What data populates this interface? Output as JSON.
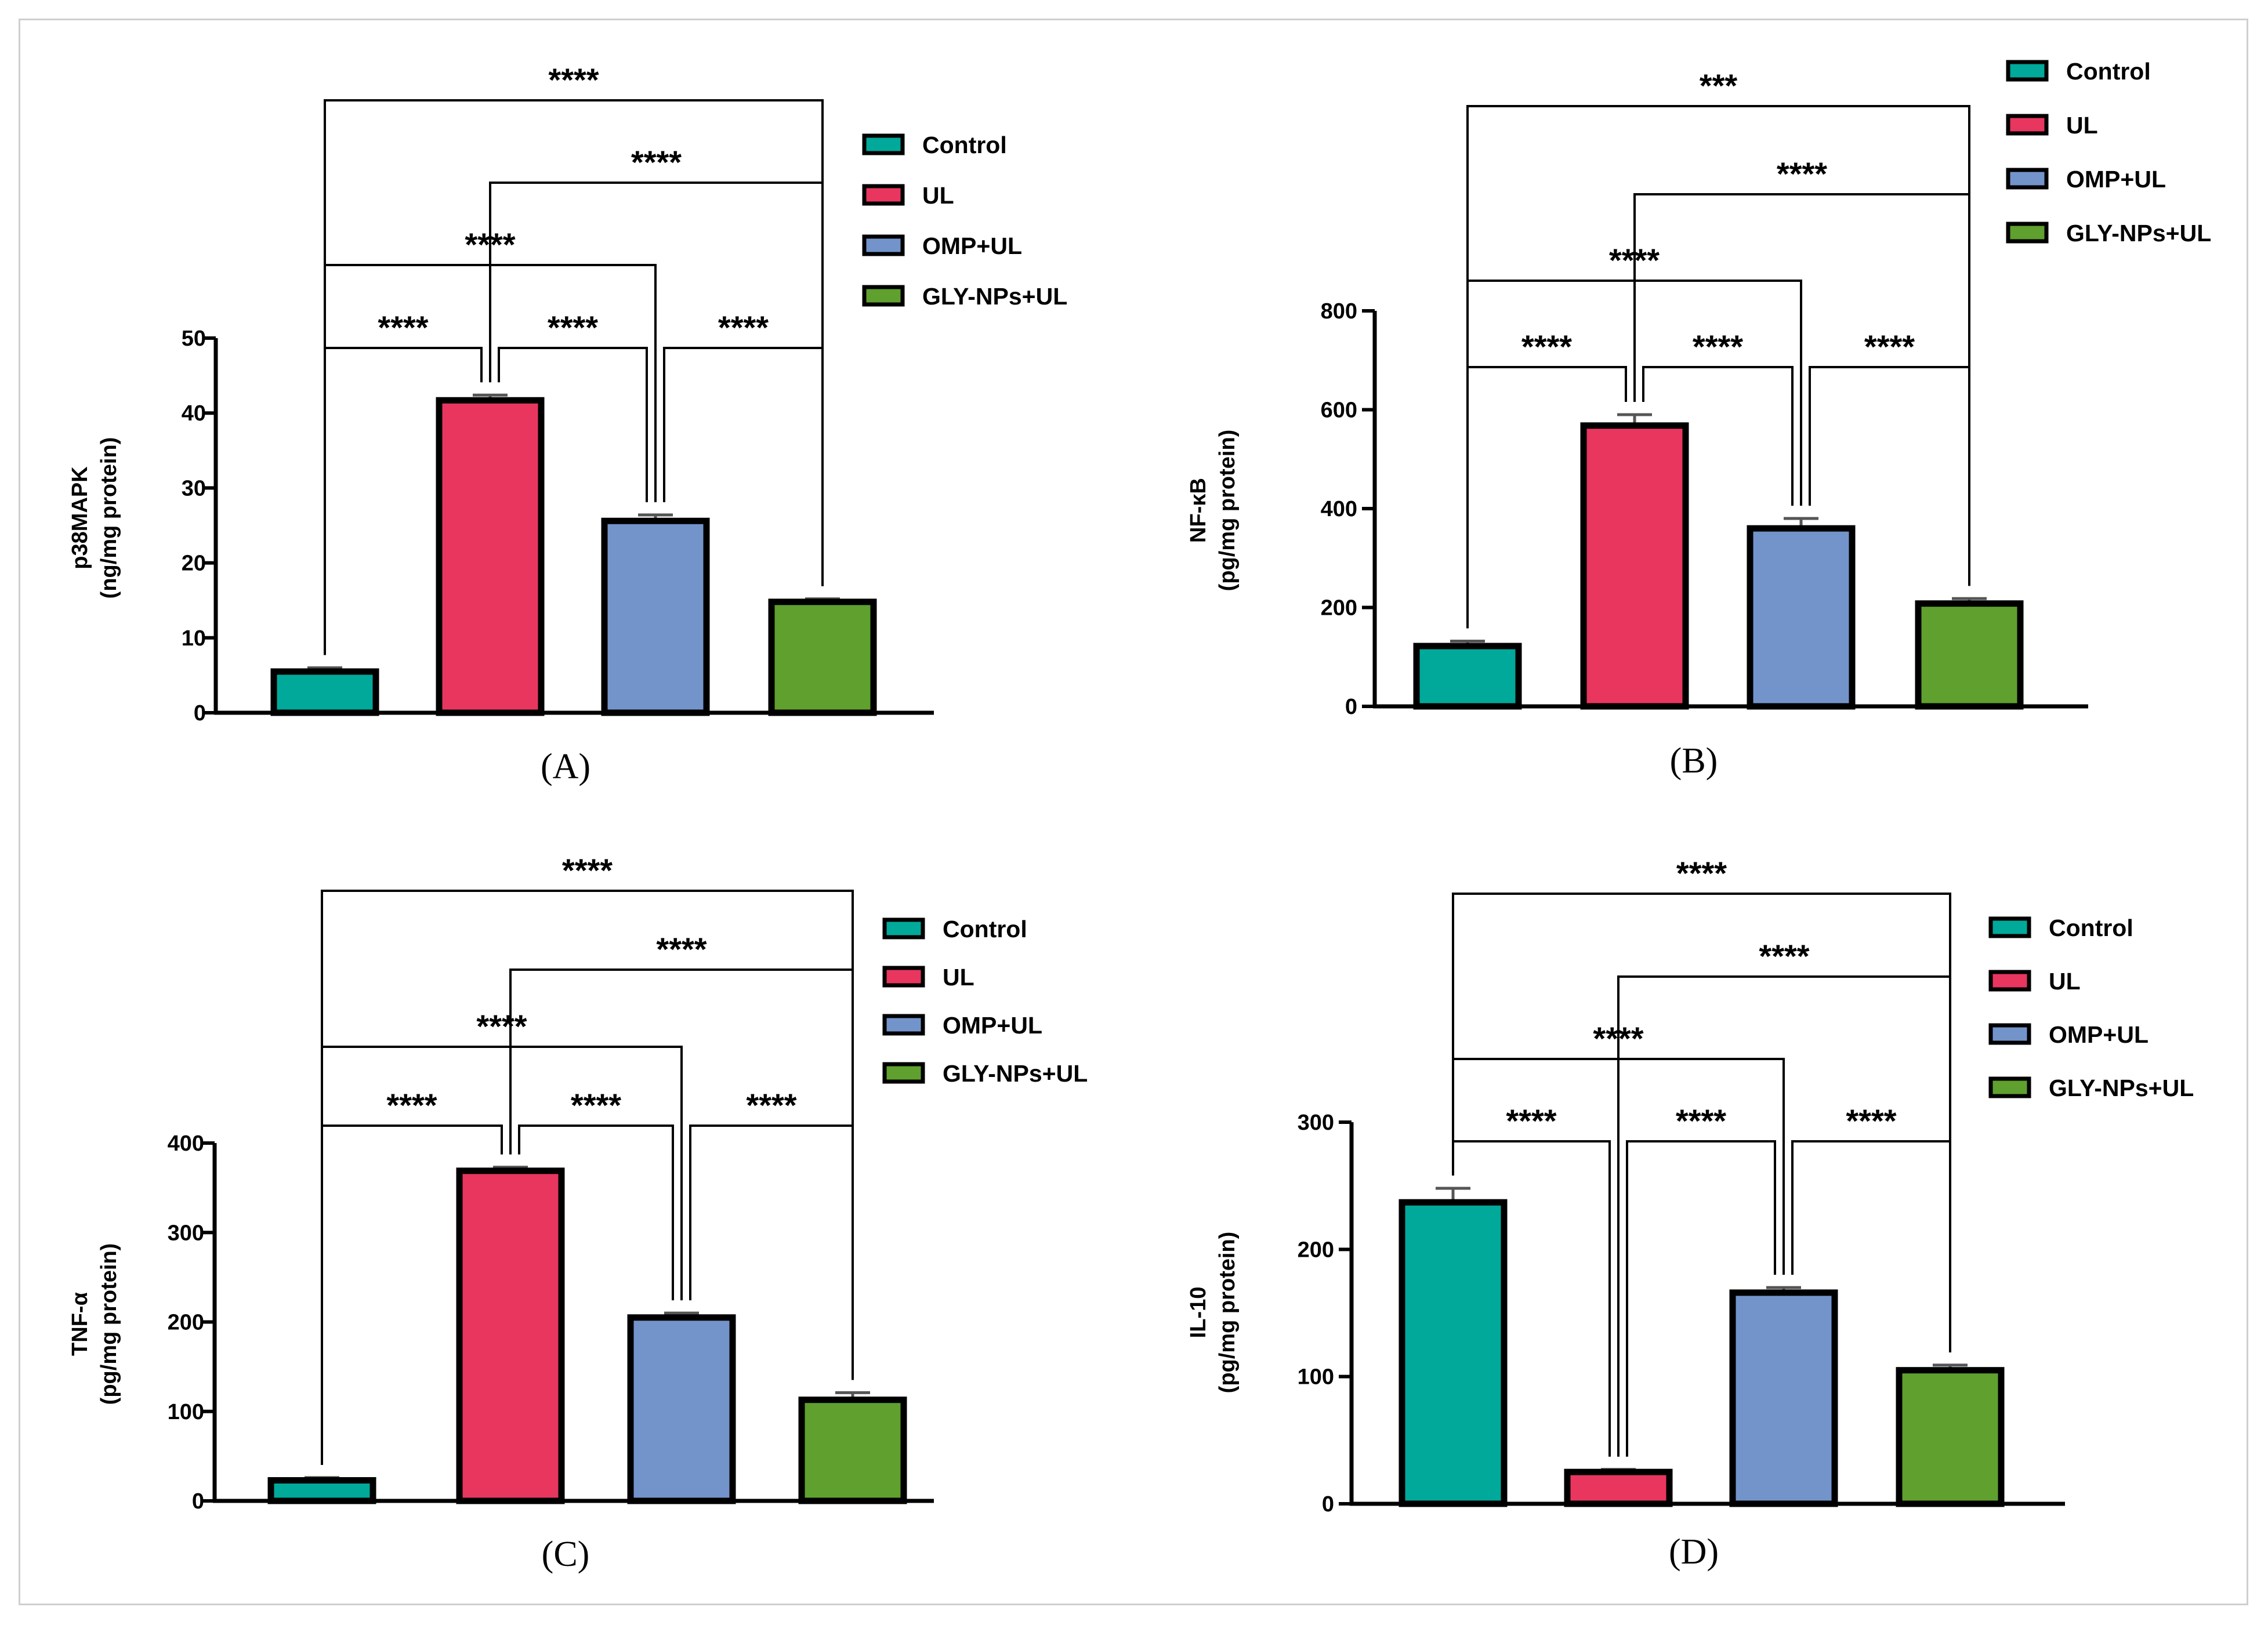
{
  "colors": {
    "Control": "#00a99a",
    "UL": "#e8365f",
    "OMP+UL": "#7394cb",
    "GLY-NPs+UL": "#5fa02e"
  },
  "legend_order": [
    "Control",
    "UL",
    "OMP+UL",
    "GLY-NPs+UL"
  ],
  "chart_data": [
    {
      "type": "bar",
      "panel_label": "(A)",
      "categories": [
        "Control",
        "UL",
        "OMP+UL",
        "GLY-NPs+UL"
      ],
      "values": [
        5.5,
        41.7,
        25.6,
        14.8
      ],
      "errors": [
        0.5,
        0.7,
        0.8,
        0.4
      ],
      "ylabel": [
        "p38MAPK",
        "(ng/mg protein)"
      ],
      "ylim": [
        0,
        50
      ],
      "yticks": [
        0,
        10,
        20,
        30,
        40,
        50
      ],
      "legend": [
        "Control",
        "UL",
        "OMP+UL",
        "GLY-NPs+UL"
      ],
      "comparisons": [
        {
          "pair": [
            0,
            1
          ],
          "label": "****"
        },
        {
          "pair": [
            1,
            2
          ],
          "label": "****"
        },
        {
          "pair": [
            2,
            3
          ],
          "label": "****"
        },
        {
          "pair": [
            0,
            2
          ],
          "label": "****"
        },
        {
          "pair": [
            1,
            3
          ],
          "label": "****"
        },
        {
          "pair": [
            0,
            3
          ],
          "label": "****"
        }
      ]
    },
    {
      "type": "bar",
      "panel_label": "(B)",
      "categories": [
        "Control",
        "UL",
        "OMP+UL",
        "GLY-NPs+UL"
      ],
      "values": [
        122,
        568,
        360,
        208
      ],
      "errors": [
        10,
        22,
        20,
        10
      ],
      "ylabel": [
        "NF-κB",
        "(pg/mg protein)"
      ],
      "ylim": [
        0,
        800
      ],
      "yticks": [
        0,
        200,
        400,
        600,
        800
      ],
      "legend": [
        "Control",
        "UL",
        "OMP+UL",
        "GLY-NPs+UL"
      ],
      "comparisons": [
        {
          "pair": [
            0,
            1
          ],
          "label": "****"
        },
        {
          "pair": [
            1,
            2
          ],
          "label": "****"
        },
        {
          "pair": [
            2,
            3
          ],
          "label": "****"
        },
        {
          "pair": [
            0,
            2
          ],
          "label": "****"
        },
        {
          "pair": [
            1,
            3
          ],
          "label": "****"
        },
        {
          "pair": [
            0,
            3
          ],
          "label": "***"
        }
      ]
    },
    {
      "type": "bar",
      "panel_label": "(C)",
      "categories": [
        "Control",
        "UL",
        "OMP+UL",
        "GLY-NPs+UL"
      ],
      "values": [
        23,
        369,
        205,
        113
      ],
      "errors": [
        3,
        4,
        5,
        8
      ],
      "ylabel": [
        "TNF-α",
        "(pg/mg protein)"
      ],
      "ylim": [
        0,
        400
      ],
      "yticks": [
        0,
        100,
        200,
        300,
        400
      ],
      "legend": [
        "Control",
        "UL",
        "OMP+UL",
        "GLY-NPs+UL"
      ],
      "comparisons": [
        {
          "pair": [
            0,
            1
          ],
          "label": "****"
        },
        {
          "pair": [
            1,
            2
          ],
          "label": "****"
        },
        {
          "pair": [
            2,
            3
          ],
          "label": "****"
        },
        {
          "pair": [
            0,
            2
          ],
          "label": "****"
        },
        {
          "pair": [
            1,
            3
          ],
          "label": "****"
        },
        {
          "pair": [
            0,
            3
          ],
          "label": "****"
        }
      ]
    },
    {
      "type": "bar",
      "panel_label": "(D)",
      "categories": [
        "Control",
        "UL",
        "OMP+UL",
        "GLY-NPs+UL"
      ],
      "values": [
        237,
        25,
        166,
        105
      ],
      "errors": [
        11,
        2,
        4,
        4
      ],
      "ylabel": [
        "IL-10",
        "(pg/mg protein)"
      ],
      "ylim": [
        0,
        300
      ],
      "yticks": [
        0,
        100,
        200,
        300
      ],
      "legend": [
        "Control",
        "UL",
        "OMP+UL",
        "GLY-NPs+UL"
      ],
      "comparisons": [
        {
          "pair": [
            0,
            1
          ],
          "label": "****"
        },
        {
          "pair": [
            1,
            2
          ],
          "label": "****"
        },
        {
          "pair": [
            2,
            3
          ],
          "label": "****"
        },
        {
          "pair": [
            0,
            2
          ],
          "label": "****"
        },
        {
          "pair": [
            1,
            3
          ],
          "label": "****"
        },
        {
          "pair": [
            0,
            3
          ],
          "label": "****"
        }
      ]
    }
  ]
}
